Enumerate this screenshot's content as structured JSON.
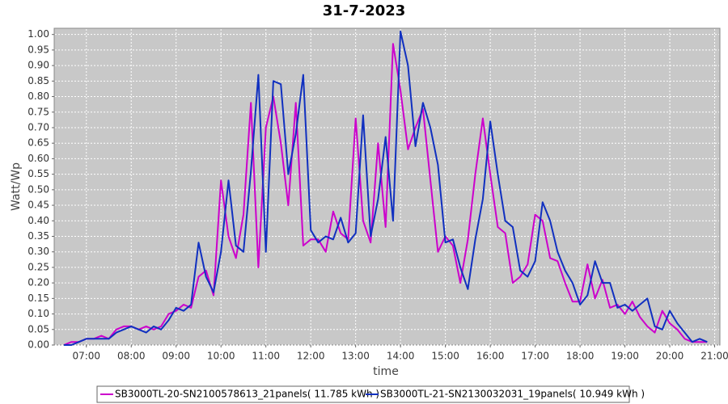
{
  "chart_data": {
    "type": "line",
    "title": "31-7-2023",
    "x_label": "time",
    "y_label": "Watt/Wp",
    "x": [
      390,
      400,
      410,
      420,
      430,
      440,
      450,
      460,
      470,
      480,
      490,
      500,
      510,
      520,
      530,
      540,
      550,
      560,
      570,
      580,
      590,
      600,
      610,
      620,
      630,
      640,
      650,
      660,
      670,
      680,
      690,
      700,
      710,
      720,
      730,
      740,
      750,
      760,
      770,
      780,
      790,
      800,
      810,
      820,
      830,
      840,
      850,
      860,
      870,
      880,
      890,
      900,
      910,
      920,
      930,
      940,
      950,
      960,
      970,
      980,
      990,
      1000,
      1010,
      1020,
      1030,
      1040,
      1050,
      1060,
      1070,
      1080,
      1090,
      1100,
      1110,
      1120,
      1130,
      1140,
      1150,
      1160,
      1170,
      1180,
      1190,
      1200,
      1210,
      1220,
      1230,
      1240,
      1250
    ],
    "series": [
      {
        "name": "SB3000TL-20-SN2100578613_21panels( 11.785 kWh )",
        "color": "#cc00cc",
        "values": [
          0,
          0.01,
          0.01,
          0.02,
          0.02,
          0.03,
          0.02,
          0.05,
          0.06,
          0.06,
          0.05,
          0.06,
          0.05,
          0.06,
          0.1,
          0.11,
          0.13,
          0.12,
          0.22,
          0.24,
          0.16,
          0.53,
          0.35,
          0.28,
          0.42,
          0.78,
          0.25,
          0.7,
          0.8,
          0.65,
          0.45,
          0.78,
          0.32,
          0.34,
          0.34,
          0.3,
          0.43,
          0.36,
          0.34,
          0.73,
          0.4,
          0.33,
          0.65,
          0.38,
          0.97,
          0.82,
          0.63,
          0.7,
          0.76,
          0.53,
          0.3,
          0.35,
          0.32,
          0.2,
          0.34,
          0.55,
          0.73,
          0.55,
          0.38,
          0.36,
          0.2,
          0.22,
          0.26,
          0.42,
          0.4,
          0.28,
          0.27,
          0.2,
          0.14,
          0.14,
          0.26,
          0.15,
          0.21,
          0.12,
          0.13,
          0.1,
          0.14,
          0.09,
          0.06,
          0.04,
          0.11,
          0.07,
          0.05,
          0.02,
          0.01,
          0.01,
          0.01
        ]
      },
      {
        "name": "SB3000TL-21-SN2130032031_19panels( 10.949 kWh )",
        "color": "#1030c0",
        "values": [
          0,
          0,
          0.01,
          0.02,
          0.02,
          0.02,
          0.02,
          0.04,
          0.05,
          0.06,
          0.05,
          0.04,
          0.06,
          0.05,
          0.08,
          0.12,
          0.11,
          0.13,
          0.33,
          0.22,
          0.17,
          0.3,
          0.53,
          0.32,
          0.3,
          0.56,
          0.87,
          0.3,
          0.85,
          0.84,
          0.55,
          0.68,
          0.87,
          0.37,
          0.33,
          0.35,
          0.34,
          0.41,
          0.33,
          0.36,
          0.74,
          0.35,
          0.47,
          0.67,
          0.4,
          1.01,
          0.9,
          0.64,
          0.78,
          0.7,
          0.58,
          0.33,
          0.34,
          0.25,
          0.18,
          0.34,
          0.47,
          0.72,
          0.55,
          0.4,
          0.38,
          0.24,
          0.22,
          0.27,
          0.46,
          0.4,
          0.3,
          0.24,
          0.2,
          0.13,
          0.16,
          0.27,
          0.2,
          0.2,
          0.12,
          0.13,
          0.11,
          0.13,
          0.15,
          0.06,
          0.05,
          0.11,
          0.07,
          0.04,
          0.01,
          0.02,
          0.01
        ]
      }
    ],
    "xlim": [
      377,
      1267
    ],
    "xticks": [
      {
        "value": 420,
        "label": "07:00"
      },
      {
        "value": 480,
        "label": "08:00"
      },
      {
        "value": 540,
        "label": "09:00"
      },
      {
        "value": 600,
        "label": "10:00"
      },
      {
        "value": 660,
        "label": "11:00"
      },
      {
        "value": 720,
        "label": "12:00"
      },
      {
        "value": 780,
        "label": "13:00"
      },
      {
        "value": 840,
        "label": "14:00"
      },
      {
        "value": 900,
        "label": "15:00"
      },
      {
        "value": 960,
        "label": "16:00"
      },
      {
        "value": 1020,
        "label": "17:00"
      },
      {
        "value": 1080,
        "label": "18:00"
      },
      {
        "value": 1140,
        "label": "19:00"
      },
      {
        "value": 1200,
        "label": "20:00"
      },
      {
        "value": 1260,
        "label": "21:00"
      }
    ],
    "ylim": [
      0,
      1.02
    ],
    "yticks": [
      {
        "value": 0,
        "label": "0.00"
      },
      {
        "value": 0.05,
        "label": "0.05"
      },
      {
        "value": 0.1,
        "label": "0.10"
      },
      {
        "value": 0.15,
        "label": "0.15"
      },
      {
        "value": 0.2,
        "label": "0.20"
      },
      {
        "value": 0.25,
        "label": "0.25"
      },
      {
        "value": 0.3,
        "label": "0.30"
      },
      {
        "value": 0.35,
        "label": "0.35"
      },
      {
        "value": 0.4,
        "label": "0.40"
      },
      {
        "value": 0.45,
        "label": "0.45"
      },
      {
        "value": 0.5,
        "label": "0.50"
      },
      {
        "value": 0.55,
        "label": "0.55"
      },
      {
        "value": 0.6,
        "label": "0.60"
      },
      {
        "value": 0.65,
        "label": "0.65"
      },
      {
        "value": 0.7,
        "label": "0.70"
      },
      {
        "value": 0.75,
        "label": "0.75"
      },
      {
        "value": 0.8,
        "label": "0.80"
      },
      {
        "value": 0.85,
        "label": "0.85"
      },
      {
        "value": 0.9,
        "label": "0.90"
      },
      {
        "value": 0.95,
        "label": "0.95"
      },
      {
        "value": 1,
        "label": "1.00"
      }
    ],
    "grid": true,
    "legend": "bottom"
  }
}
